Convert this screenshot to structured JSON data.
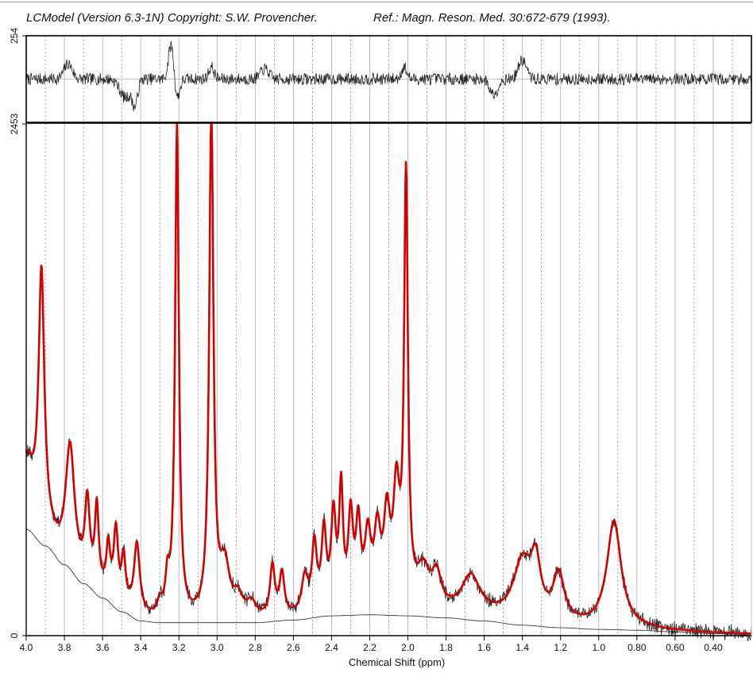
{
  "header": {
    "left_text": "LCModel (Version 6.3-1N) Copyright: S.W. Provencher.",
    "right_text": "Ref.: Magn. Reson. Med. 30:672-679 (1993)."
  },
  "colors": {
    "fit": "#d40000",
    "data": "#222222",
    "baseline": "#222222",
    "residual": "#222222",
    "grid_solid": "#aaaaaa",
    "grid_dotted": "#777777",
    "frame": "#000000"
  },
  "chart_data": [
    {
      "type": "line",
      "name": "residual-panel",
      "ylim": [
        -254,
        254
      ],
      "ytick_labels": [
        "254"
      ],
      "residual": {
        "seed": 7,
        "noise": 35,
        "features": [
          [
            3.24,
            210,
            0.02
          ],
          [
            3.21,
            -120,
            0.02
          ],
          [
            3.78,
            90,
            0.03
          ],
          [
            3.48,
            -110,
            0.04
          ],
          [
            3.43,
            -140,
            0.02
          ],
          [
            2.02,
            70,
            0.02
          ],
          [
            1.4,
            110,
            0.03
          ],
          [
            1.55,
            -90,
            0.03
          ],
          [
            2.75,
            60,
            0.03
          ],
          [
            3.03,
            70,
            0.02
          ]
        ]
      }
    },
    {
      "type": "line",
      "name": "spectrum-panel",
      "xlabel": "Chemical Shift (ppm)",
      "xlim": [
        4.0,
        0.2
      ],
      "ylim": [
        0,
        2453
      ],
      "ytick_labels": [
        "2453",
        "0"
      ],
      "xticks": [
        4.0,
        3.9,
        3.8,
        3.7,
        3.6,
        3.5,
        3.4,
        3.3,
        3.2,
        3.1,
        3.0,
        2.9,
        2.8,
        2.7,
        2.6,
        2.5,
        2.4,
        2.3,
        2.2,
        2.1,
        2.0,
        1.9,
        1.8,
        1.7,
        1.6,
        1.5,
        1.4,
        1.3,
        1.2,
        1.1,
        1.0,
        0.9,
        0.8,
        0.7,
        0.6,
        0.5,
        0.4,
        0.3
      ],
      "xtick_labels": [
        "4.0",
        "3.8",
        "3.6",
        "3.4",
        "3.2",
        "3.0",
        "2.8",
        "2.6",
        "2.4",
        "2.2",
        "2.0",
        "1.8",
        "1.6",
        "1.4",
        "1.2",
        "1.0",
        "0.80",
        "0.60",
        "0.40"
      ],
      "xtick_values": [
        4.0,
        3.8,
        3.6,
        3.4,
        3.2,
        3.0,
        2.8,
        2.6,
        2.4,
        2.2,
        2.0,
        1.8,
        1.6,
        1.4,
        1.2,
        1.0,
        0.8,
        0.6,
        0.4
      ],
      "solid_grid": [
        4.0,
        3.8,
        3.6,
        3.4,
        3.2,
        3.0,
        2.8,
        2.6,
        2.4,
        2.2,
        2.0,
        1.8,
        1.6,
        1.4,
        1.2,
        1.0,
        0.8,
        0.6,
        0.4
      ],
      "baseline": [
        [
          4.0,
          510
        ],
        [
          3.9,
          430
        ],
        [
          3.8,
          340
        ],
        [
          3.7,
          250
        ],
        [
          3.6,
          180
        ],
        [
          3.5,
          115
        ],
        [
          3.4,
          70
        ],
        [
          3.3,
          62
        ],
        [
          3.2,
          62
        ],
        [
          3.0,
          62
        ],
        [
          2.8,
          62
        ],
        [
          2.6,
          75
        ],
        [
          2.4,
          95
        ],
        [
          2.2,
          100
        ],
        [
          2.0,
          95
        ],
        [
          1.8,
          85
        ],
        [
          1.6,
          70
        ],
        [
          1.4,
          50
        ],
        [
          1.2,
          38
        ],
        [
          1.0,
          30
        ],
        [
          0.8,
          26
        ],
        [
          0.6,
          18
        ],
        [
          0.4,
          10
        ],
        [
          0.2,
          6
        ]
      ],
      "fit_peaks": [
        [
          4.0,
          300,
          0.05
        ],
        [
          3.92,
          1230,
          0.018
        ],
        [
          3.77,
          560,
          0.028
        ],
        [
          3.68,
          360,
          0.015
        ],
        [
          3.63,
          380,
          0.012
        ],
        [
          3.57,
          220,
          0.012
        ],
        [
          3.53,
          340,
          0.014
        ],
        [
          3.49,
          220,
          0.012
        ],
        [
          3.42,
          340,
          0.018
        ],
        [
          3.3,
          60,
          0.015
        ],
        [
          3.26,
          160,
          0.012
        ],
        [
          3.21,
          2350,
          0.012
        ],
        [
          3.03,
          2453,
          0.013
        ],
        [
          2.96,
          240,
          0.03
        ],
        [
          2.89,
          90,
          0.03
        ],
        [
          2.82,
          70,
          0.03
        ],
        [
          2.71,
          240,
          0.015
        ],
        [
          2.66,
          200,
          0.015
        ],
        [
          2.54,
          170,
          0.02
        ],
        [
          2.49,
          310,
          0.015
        ],
        [
          2.44,
          360,
          0.015
        ],
        [
          2.39,
          430,
          0.015
        ],
        [
          2.35,
          550,
          0.012
        ],
        [
          2.3,
          420,
          0.015
        ],
        [
          2.26,
          370,
          0.015
        ],
        [
          2.21,
          320,
          0.02
        ],
        [
          2.16,
          330,
          0.02
        ],
        [
          2.11,
          400,
          0.02
        ],
        [
          2.06,
          520,
          0.02
        ],
        [
          2.01,
          2030,
          0.012
        ],
        [
          1.92,
          180,
          0.04
        ],
        [
          1.85,
          160,
          0.03
        ],
        [
          1.67,
          190,
          0.06
        ],
        [
          1.4,
          280,
          0.06
        ],
        [
          1.33,
          240,
          0.03
        ],
        [
          1.21,
          225,
          0.035
        ],
        [
          0.92,
          510,
          0.045
        ]
      ],
      "data_noise": 28,
      "data_seed": 13
    }
  ]
}
